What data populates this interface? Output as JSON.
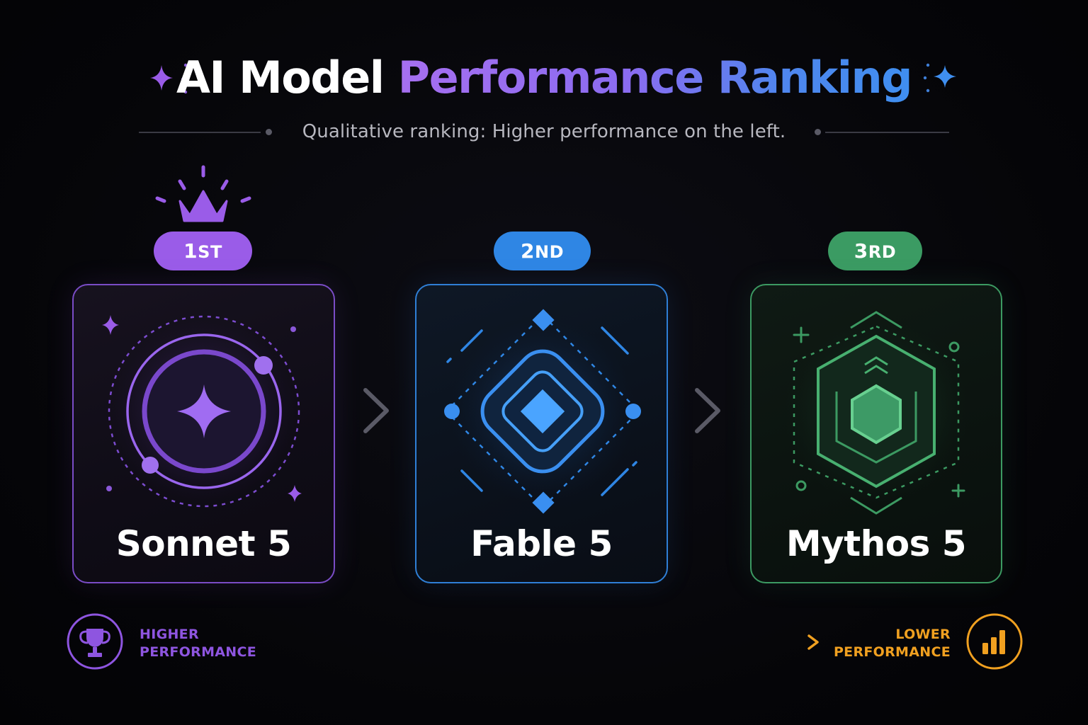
{
  "header": {
    "title_plain": "AI Model",
    "title_accent": "Performance Ranking",
    "subtitle": "Qualitative ranking: Higher performance on the left."
  },
  "ranking": [
    {
      "rank": "1",
      "suffix": "ST",
      "name": "Sonnet 5",
      "color": "#9a5ce8",
      "icon": "crown-icon"
    },
    {
      "rank": "2",
      "suffix": "ND",
      "name": "Fable 5",
      "color": "#2f86e4",
      "icon": "diamond-icon"
    },
    {
      "rank": "3",
      "suffix": "RD",
      "name": "Mythos 5",
      "color": "#3b9b63",
      "icon": "hexagon-icon"
    }
  ],
  "axis": {
    "left_label_line1": "HIGHER",
    "left_label_line2": "PERFORMANCE",
    "left_icon": "trophy-icon",
    "left_color": "#8e55e0",
    "right_label_line1": "LOWER",
    "right_label_line2": "PERFORMANCE",
    "right_icon": "bar-chart-icon",
    "right_color": "#f0a020"
  }
}
